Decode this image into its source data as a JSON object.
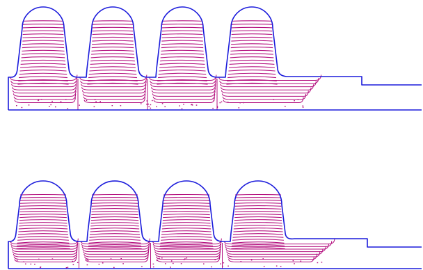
{
  "figure": {
    "description_hidden": "",
    "outline_color": "#1a1adb",
    "contour_color": "#b4107f",
    "background_color": "#ffffff",
    "panels": [
      {
        "id": "top",
        "teeth_count": 4,
        "contour_levels": 20
      },
      {
        "id": "bottom",
        "teeth_count": 4,
        "contour_levels": 20
      }
    ]
  }
}
